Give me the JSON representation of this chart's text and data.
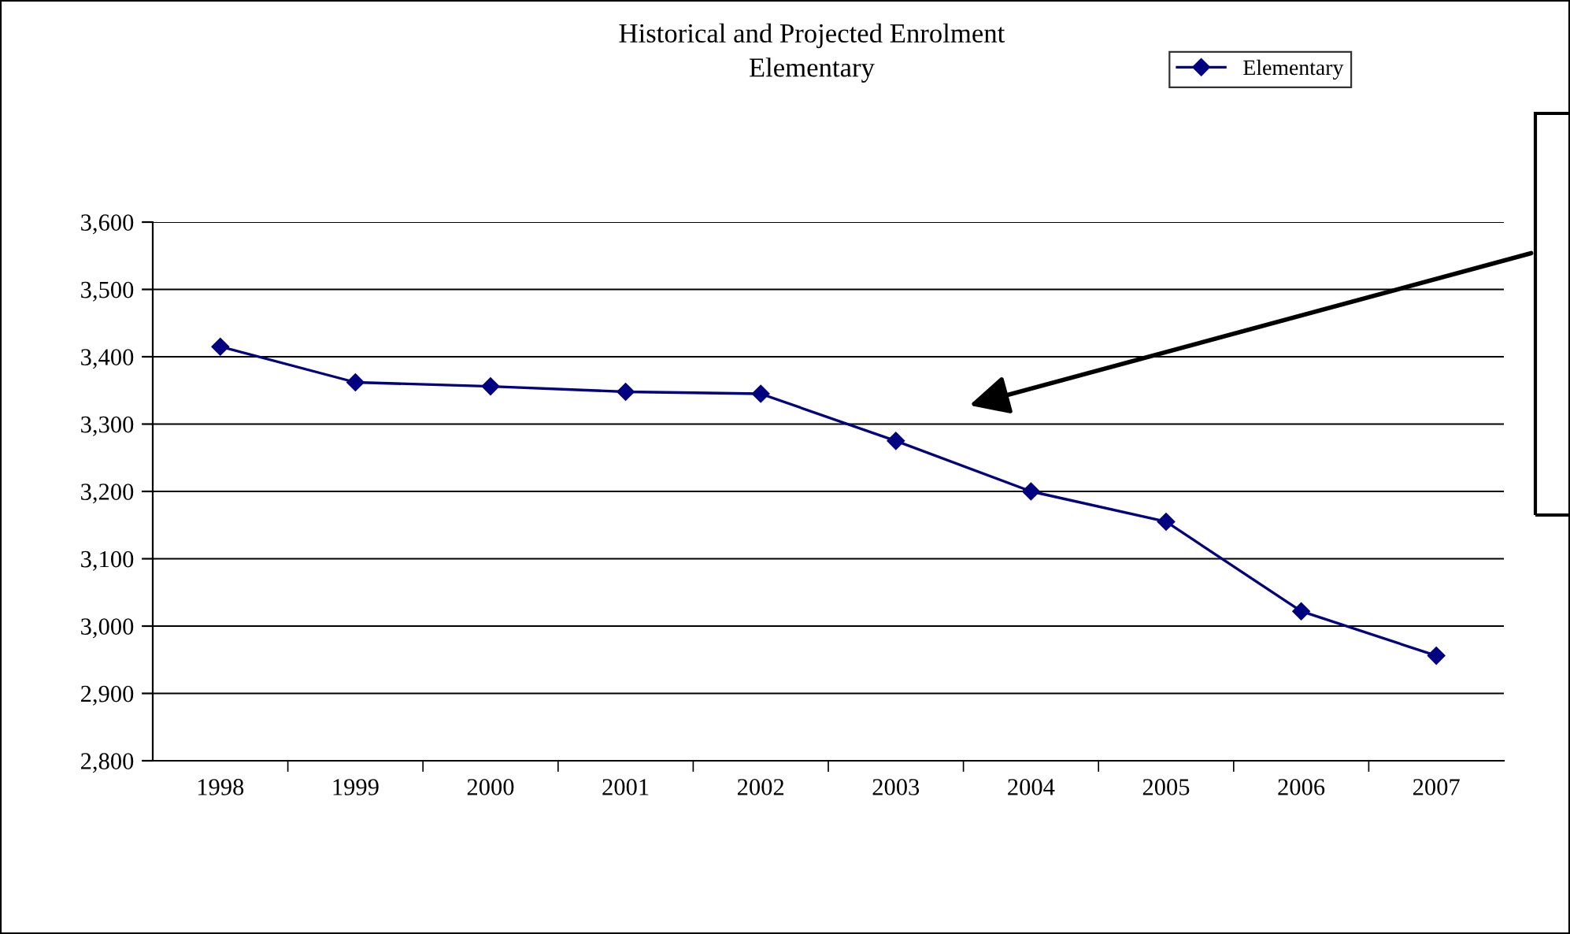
{
  "chart_data": {
    "type": "line",
    "title": "Historical and Projected Enrolment\nElementary",
    "categories": [
      "1998",
      "1999",
      "2000",
      "2001",
      "2002",
      "2003",
      "2004",
      "2005",
      "2006",
      "2007"
    ],
    "series": [
      {
        "name": "Elementary",
        "color": "#000080",
        "values": [
          3415,
          3362,
          3356,
          3348,
          3345,
          3275,
          3200,
          3155,
          3022,
          2956
        ]
      }
    ],
    "ylim": [
      2800,
      3600
    ],
    "yticks": [
      {
        "value": 2800,
        "label": "2,800"
      },
      {
        "value": 2900,
        "label": "2,900"
      },
      {
        "value": 3000,
        "label": "3,000"
      },
      {
        "value": 3100,
        "label": "3,100"
      },
      {
        "value": 3200,
        "label": "3,200"
      },
      {
        "value": 3300,
        "label": "3,300"
      },
      {
        "value": 3400,
        "label": "3,400"
      },
      {
        "value": 3500,
        "label": "3,500"
      },
      {
        "value": 3600,
        "label": "3,600"
      }
    ],
    "grid": "y",
    "legend": "top right",
    "marker": "diamond",
    "line_style": "solid"
  }
}
